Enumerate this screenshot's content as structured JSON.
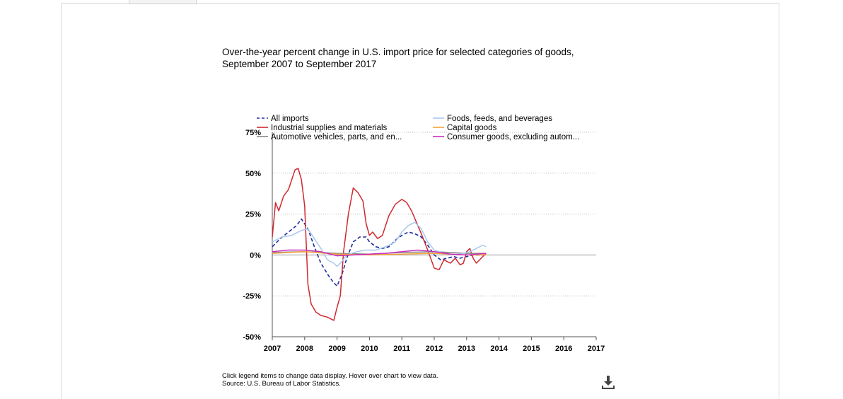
{
  "chart_title_line1": "Over-the-year percent change in U.S. import price for selected categories of goods,",
  "chart_title_line2": "September 2007 to September 2017",
  "footer": {
    "instructions": "Click legend items to change data display. Hover over chart to view data.",
    "source": "Source: U.S. Bureau of Labor Statistics."
  },
  "download_icon": "download-icon",
  "chart_data": {
    "type": "line",
    "x_range": [
      "2007",
      "2017"
    ],
    "xticks": [
      "2007",
      "2008",
      "2009",
      "2010",
      "2011",
      "2012",
      "2013",
      "2014",
      "2015",
      "2016",
      "2017"
    ],
    "ylim": [
      -50,
      75
    ],
    "yticks": [
      "-50%",
      "-25%",
      "0%",
      "25%",
      "50%",
      "75%"
    ],
    "grid": "dotted horizontal",
    "legend": "top",
    "series": [
      {
        "name": "All imports",
        "color": "#1f2d9e",
        "dash": true,
        "x": [
          2007.0,
          2007.25,
          2007.5,
          2007.75,
          2007.9,
          2008.1,
          2008.3,
          2008.5,
          2008.75,
          2008.9,
          2009.0,
          2009.15,
          2009.3,
          2009.5,
          2009.7,
          2009.9,
          2010.0,
          2010.2,
          2010.4,
          2010.6,
          2010.8,
          2011.0,
          2011.2,
          2011.4,
          2011.6,
          2011.8,
          2012.0,
          2012.2,
          2012.4,
          2012.6,
          2012.8,
          2013.0,
          2013.2,
          2013.4,
          2013.6
        ],
        "y": [
          5,
          10,
          14,
          18,
          22,
          16,
          5,
          -5,
          -13,
          -17,
          -19,
          -12,
          -2,
          8,
          11,
          11,
          8,
          5,
          4,
          5,
          9,
          12,
          14,
          13,
          11,
          6,
          0,
          -3,
          -2,
          -1,
          -2,
          -1,
          0,
          0,
          0
        ]
      },
      {
        "name": "Industrial supplies and materials",
        "color": "#d0282e",
        "x": [
          2007.0,
          2007.1,
          2007.2,
          2007.35,
          2007.5,
          2007.7,
          2007.8,
          2007.9,
          2008.0,
          2008.1,
          2008.2,
          2008.35,
          2008.5,
          2008.7,
          2008.9,
          2009.0,
          2009.1,
          2009.2,
          2009.35,
          2009.5,
          2009.65,
          2009.8,
          2009.9,
          2010.0,
          2010.1,
          2010.25,
          2010.4,
          2010.6,
          2010.8,
          2011.0,
          2011.15,
          2011.3,
          2011.45,
          2011.6,
          2011.8,
          2012.0,
          2012.15,
          2012.3,
          2012.5,
          2012.65,
          2012.8,
          2012.9,
          2013.0,
          2013.1,
          2013.2,
          2013.3,
          2013.45,
          2013.6
        ],
        "y": [
          11,
          32,
          27,
          36,
          40,
          52,
          53,
          46,
          30,
          -18,
          -30,
          -35,
          -37,
          -38,
          -40,
          -32,
          -25,
          2,
          25,
          41,
          38,
          33,
          19,
          12,
          14,
          10,
          12,
          24,
          31,
          34,
          32,
          27,
          20,
          13,
          3,
          -8,
          -9,
          -3,
          -5,
          -2,
          -6,
          -5,
          2,
          4,
          -2,
          -5,
          -2,
          1
        ]
      },
      {
        "name": "Automotive vehicles, parts, and en...",
        "color": "#888888",
        "x": [
          2007.0,
          2008.0,
          2009.0,
          2010.0,
          2011.0,
          2012.0,
          2013.0,
          2013.6
        ],
        "y": [
          1.5,
          2,
          1,
          0.5,
          1.5,
          2,
          1,
          1
        ]
      },
      {
        "name": "Foods, feeds, and beverages",
        "color": "#a9c8ef",
        "x": [
          2007.0,
          2007.3,
          2007.6,
          2007.9,
          2008.1,
          2008.3,
          2008.5,
          2008.7,
          2008.9,
          2009.0,
          2009.15,
          2009.3,
          2009.6,
          2009.9,
          2010.2,
          2010.5,
          2010.8,
          2011.0,
          2011.2,
          2011.4,
          2011.6,
          2011.8,
          2012.0,
          2012.3,
          2012.6,
          2012.9,
          2013.1,
          2013.3,
          2013.5,
          2013.6
        ],
        "y": [
          8,
          11,
          12,
          15,
          16,
          10,
          4,
          -3,
          -5,
          -7,
          -4,
          0,
          2,
          3,
          3,
          5,
          8,
          14,
          18,
          20,
          16,
          8,
          3,
          1,
          0,
          1,
          2,
          4,
          6,
          5
        ]
      },
      {
        "name": "Capital goods",
        "color": "#f5a23a",
        "x": [
          2007.0,
          2008.0,
          2009.0,
          2010.0,
          2011.0,
          2012.0,
          2013.0,
          2013.6
        ],
        "y": [
          1,
          2,
          0.5,
          0,
          0.5,
          1,
          0,
          0
        ]
      },
      {
        "name": "Consumer goods, excluding autom...",
        "color": "#c92fbf",
        "x": [
          2007.0,
          2007.5,
          2008.0,
          2008.5,
          2009.0,
          2009.5,
          2010.0,
          2010.5,
          2011.0,
          2011.5,
          2012.0,
          2012.5,
          2013.0,
          2013.6
        ],
        "y": [
          2,
          3,
          3,
          2,
          -0.5,
          0,
          0.5,
          1,
          2,
          3,
          2,
          0.5,
          0,
          1
        ]
      }
    ]
  }
}
